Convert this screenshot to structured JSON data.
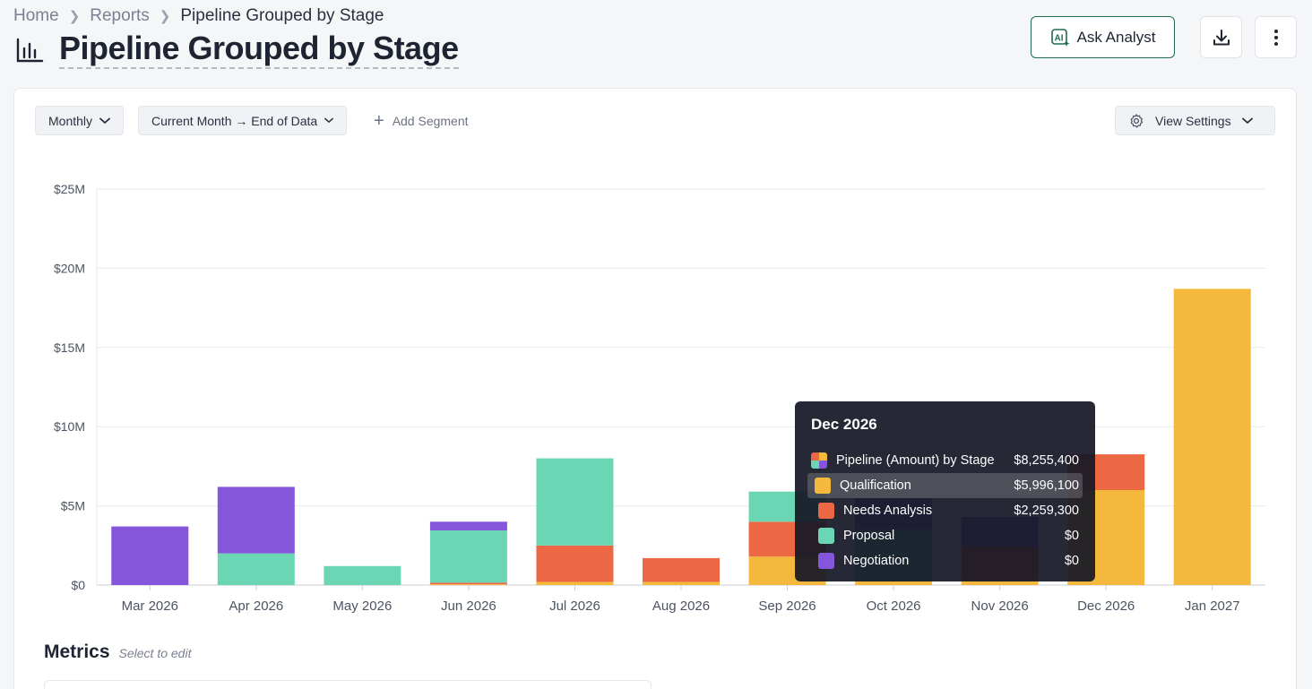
{
  "breadcrumb": {
    "home": "Home",
    "reports": "Reports",
    "current": "Pipeline Grouped by Stage"
  },
  "header": {
    "title": "Pipeline Grouped by Stage",
    "ask_label": "Ask Analyst"
  },
  "toolbar": {
    "interval": "Monthly",
    "range": "Current Month → End of Data",
    "add_segment": "Add Segment",
    "view_settings": "View Settings"
  },
  "colors": {
    "qualification": "#f4b93c",
    "needs_analysis": "#ec6845",
    "proposal": "#6ad6b4",
    "negotiation": "#8556dc"
  },
  "chart_data": {
    "type": "bar",
    "stacked": true,
    "categories": [
      "Mar 2026",
      "Apr 2026",
      "May 2026",
      "Jun 2026",
      "Jul 2026",
      "Aug 2026",
      "Sep 2026",
      "Oct 2026",
      "Nov 2026",
      "Dec 2026",
      "Jan 2027"
    ],
    "ylim": [
      0,
      25000000
    ],
    "y_ticks": [
      "$0",
      "$5M",
      "$10M",
      "$15M",
      "$20M",
      "$25M"
    ],
    "y_tick_values": [
      0,
      5000000,
      10000000,
      15000000,
      20000000,
      25000000
    ],
    "series": [
      {
        "name": "Qualification",
        "key": "qualification",
        "values": [
          0,
          0,
          0,
          50000,
          200000,
          200000,
          1800000,
          300000,
          300000,
          5996100,
          18700000
        ]
      },
      {
        "name": "Needs Analysis",
        "key": "needs_analysis",
        "values": [
          0,
          0,
          0,
          100000,
          2300000,
          1500000,
          2200000,
          0,
          2100000,
          2259300,
          0
        ]
      },
      {
        "name": "Proposal",
        "key": "proposal",
        "values": [
          0,
          2000000,
          1200000,
          3300000,
          5500000,
          0,
          1900000,
          3200000,
          0,
          0,
          0
        ]
      },
      {
        "name": "Negotiation",
        "key": "negotiation",
        "values": [
          3700000,
          4200000,
          0,
          550000,
          0,
          0,
          0,
          2000000,
          1900000,
          0,
          0
        ]
      }
    ]
  },
  "tooltip": {
    "title": "Dec 2026",
    "total_label": "Pipeline (Amount) by Stage",
    "total_value": "$8,255,400",
    "rows": [
      {
        "label": "Qualification",
        "value": "$5,996,100"
      },
      {
        "label": "Needs Analysis",
        "value": "$2,259,300"
      },
      {
        "label": "Proposal",
        "value": "$0"
      },
      {
        "label": "Negotiation",
        "value": "$0"
      }
    ]
  },
  "metrics": {
    "title": "Metrics",
    "hint": "Select to edit"
  }
}
